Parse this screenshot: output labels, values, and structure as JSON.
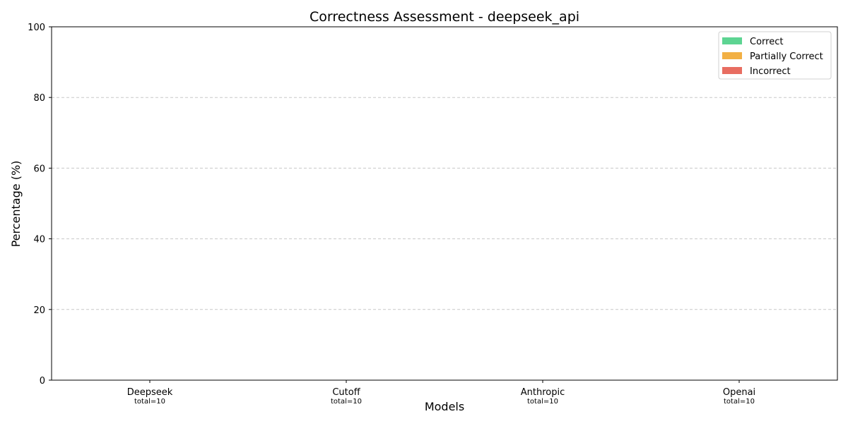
{
  "chart_data": {
    "type": "bar",
    "stacked": true,
    "title": "Correctness Assessment - deepseek_api",
    "xlabel": "Models",
    "ylabel": "Percentage (%)",
    "ylim": [
      0,
      100
    ],
    "yticks": [
      "0",
      "20",
      "40",
      "60",
      "80",
      "100"
    ],
    "ytick_values": [
      0,
      20,
      40,
      60,
      80,
      100
    ],
    "grid": "horizontal dashed",
    "legend_position": "upper right",
    "categories": [
      "Deepseek",
      "Cutoff",
      "Anthropic",
      "Openai"
    ],
    "category_sublabels": [
      "total=10",
      "total=10",
      "total=10",
      "total=10"
    ],
    "series": [
      {
        "name": "Correct",
        "color": "#5dd492",
        "values": [
          0,
          0,
          0,
          0
        ]
      },
      {
        "name": "Partially Correct",
        "color": "#f2b044",
        "values": [
          0,
          0,
          0,
          0
        ]
      },
      {
        "name": "Incorrect",
        "color": "#e86d61",
        "values": [
          0,
          0,
          0,
          0
        ]
      }
    ]
  }
}
